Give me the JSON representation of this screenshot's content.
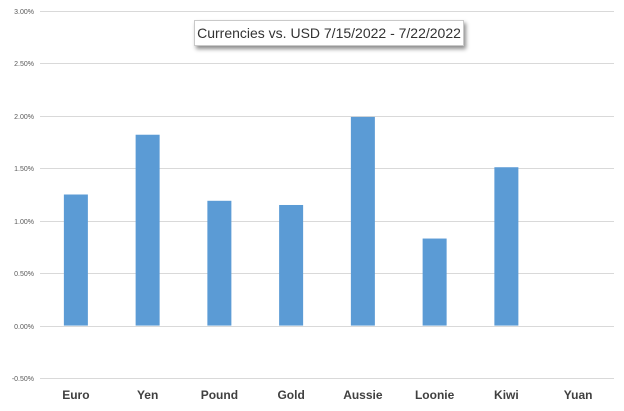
{
  "chart_data": {
    "type": "bar",
    "title": "Currencies vs. USD 7/15/2022 - 7/22/2022",
    "xlabel": "",
    "ylabel": "",
    "categories": [
      "Euro",
      "Yen",
      "Pound",
      "Gold",
      "Aussie",
      "Loonie",
      "Kiwi",
      "Yuan"
    ],
    "values": [
      1.25,
      1.82,
      1.19,
      1.15,
      1.99,
      0.83,
      1.51,
      0.0
    ],
    "ylim": [
      -0.5,
      3.0
    ],
    "yticks": [
      3.0,
      2.5,
      2.0,
      1.5,
      1.0,
      0.5,
      0.0,
      -0.5
    ],
    "ytick_labels": [
      "3.00%",
      "2.50%",
      "2.00%",
      "1.50%",
      "1.00%",
      "0.50%",
      "0.00%",
      "-0.50%"
    ],
    "grid": true,
    "legend": "none",
    "colors": {
      "bar": "#5b9bd5",
      "grid": "#d9d9d9",
      "tick_text": "#595959",
      "category_text": "#404040"
    }
  }
}
